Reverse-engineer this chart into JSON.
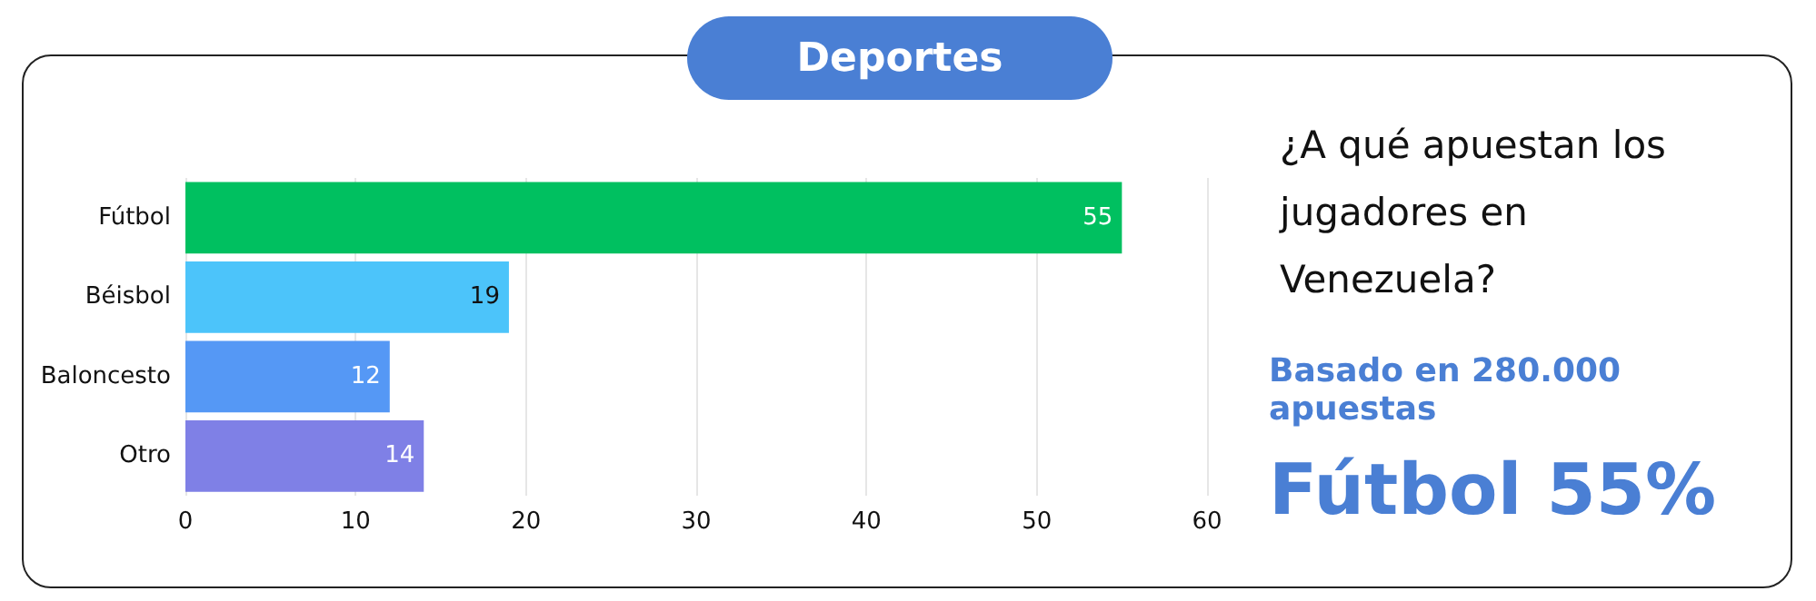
{
  "chart_data": {
    "type": "bar",
    "title": "Deportes",
    "subtitle": "¿A qué apuestan los jugadores en Venezuela?",
    "annotations": [
      "Basado en 280.000 apuestas",
      "Fútbol 55%"
    ],
    "orientation": "horizontal",
    "categories": [
      "Fútbol",
      "Béisbol",
      "Baloncesto",
      "Otro"
    ],
    "values": [
      55,
      19,
      12,
      14
    ],
    "colors": [
      "#00c060",
      "#4cc4fa",
      "#5598f5",
      "#7f80e6"
    ],
    "xlim": [
      0,
      60
    ],
    "xticks": [
      0,
      10,
      20,
      30,
      40,
      50,
      60
    ],
    "grid": "x",
    "data_labels": true
  }
}
